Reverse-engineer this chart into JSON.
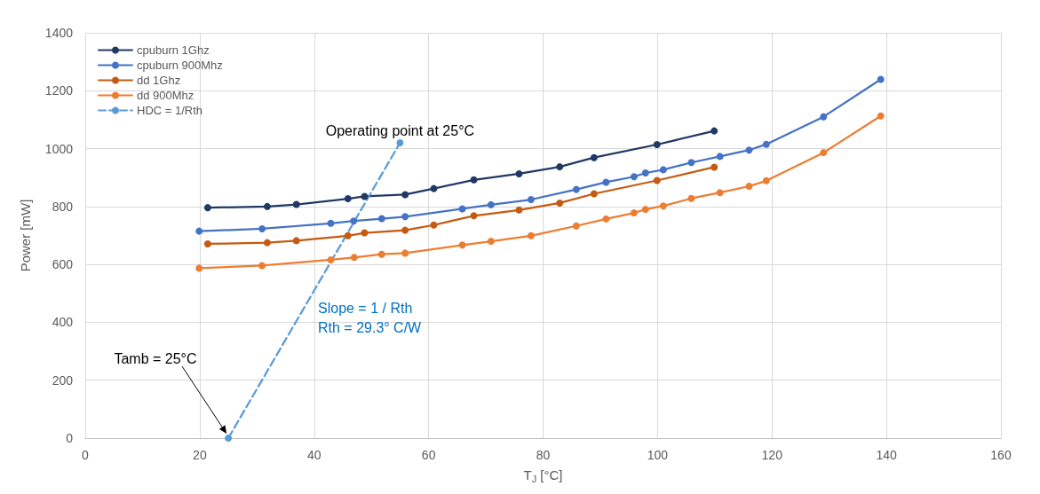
{
  "chart_data": {
    "type": "line",
    "xlabel": "T$_{J}$ [°C]",
    "ylabel": "Power [mW]",
    "xlim": [
      0,
      160
    ],
    "xticks": [
      0,
      20,
      40,
      60,
      80,
      100,
      120,
      140,
      160
    ],
    "ylim": [
      0,
      1400
    ],
    "yticks": [
      0,
      200,
      400,
      600,
      800,
      1000,
      1200,
      1400
    ],
    "grid": true,
    "legend": "top left",
    "marker": "circle",
    "series": [
      {
        "name": "cpuburn 1Ghz",
        "color": "#203864",
        "x": [
          21.4,
          31.8,
          36.9,
          45.9,
          48.8,
          55.9,
          60.9,
          67.9,
          75.8,
          82.9,
          88.9,
          99.9,
          109.9
        ],
        "values": [
          796,
          800,
          807,
          827,
          835,
          841,
          862,
          892,
          913,
          937,
          969,
          1014,
          1061
        ]
      },
      {
        "name": "cpuburn 900Mhz",
        "color": "#4472c4",
        "x": [
          19.9,
          30.9,
          42.9,
          46.9,
          51.8,
          55.9,
          65.9,
          70.9,
          77.9,
          85.8,
          91.0,
          95.9,
          97.9,
          101.0,
          105.9,
          110.9,
          116.0,
          119.0,
          129.0,
          139.0
        ],
        "values": [
          715,
          723,
          742,
          750,
          758,
          765,
          792,
          806,
          824,
          859,
          884,
          903,
          916,
          927,
          952,
          973,
          995,
          1015,
          1110,
          1239
        ]
      },
      {
        "name": "dd 1Ghz",
        "color": "#c55a11",
        "x": [
          21.4,
          31.8,
          36.9,
          45.9,
          48.8,
          55.9,
          60.9,
          67.9,
          75.8,
          82.9,
          88.9,
          99.9,
          109.9
        ],
        "values": [
          671,
          675,
          682,
          699,
          709,
          718,
          736,
          768,
          788,
          812,
          844,
          890,
          936
        ]
      },
      {
        "name": "dd 900Mhz",
        "color": "#ed7d31",
        "x": [
          19.9,
          30.9,
          42.9,
          47.0,
          51.8,
          55.9,
          65.9,
          70.9,
          77.9,
          85.8,
          91.0,
          95.9,
          97.9,
          101.0,
          105.9,
          110.9,
          116.0,
          119.0,
          129.0,
          139.0
        ],
        "values": [
          587,
          596,
          616,
          624,
          635,
          639,
          667,
          680,
          699,
          733,
          757,
          778,
          790,
          802,
          828,
          848,
          870,
          889,
          986,
          1113
        ]
      },
      {
        "name": "HDC = 1/Rth",
        "color": "#5b9bd5",
        "line_style": "dashed",
        "x": [
          25,
          55
        ],
        "values": [
          0,
          1020
        ]
      }
    ],
    "annotations": [
      {
        "text": "Operating point at 25°C",
        "x": 55,
        "y": 1020
      },
      "Tamb = 25°C",
      "Slope = 1 / Rth",
      "Rth = 29.3° C/W"
    ]
  }
}
